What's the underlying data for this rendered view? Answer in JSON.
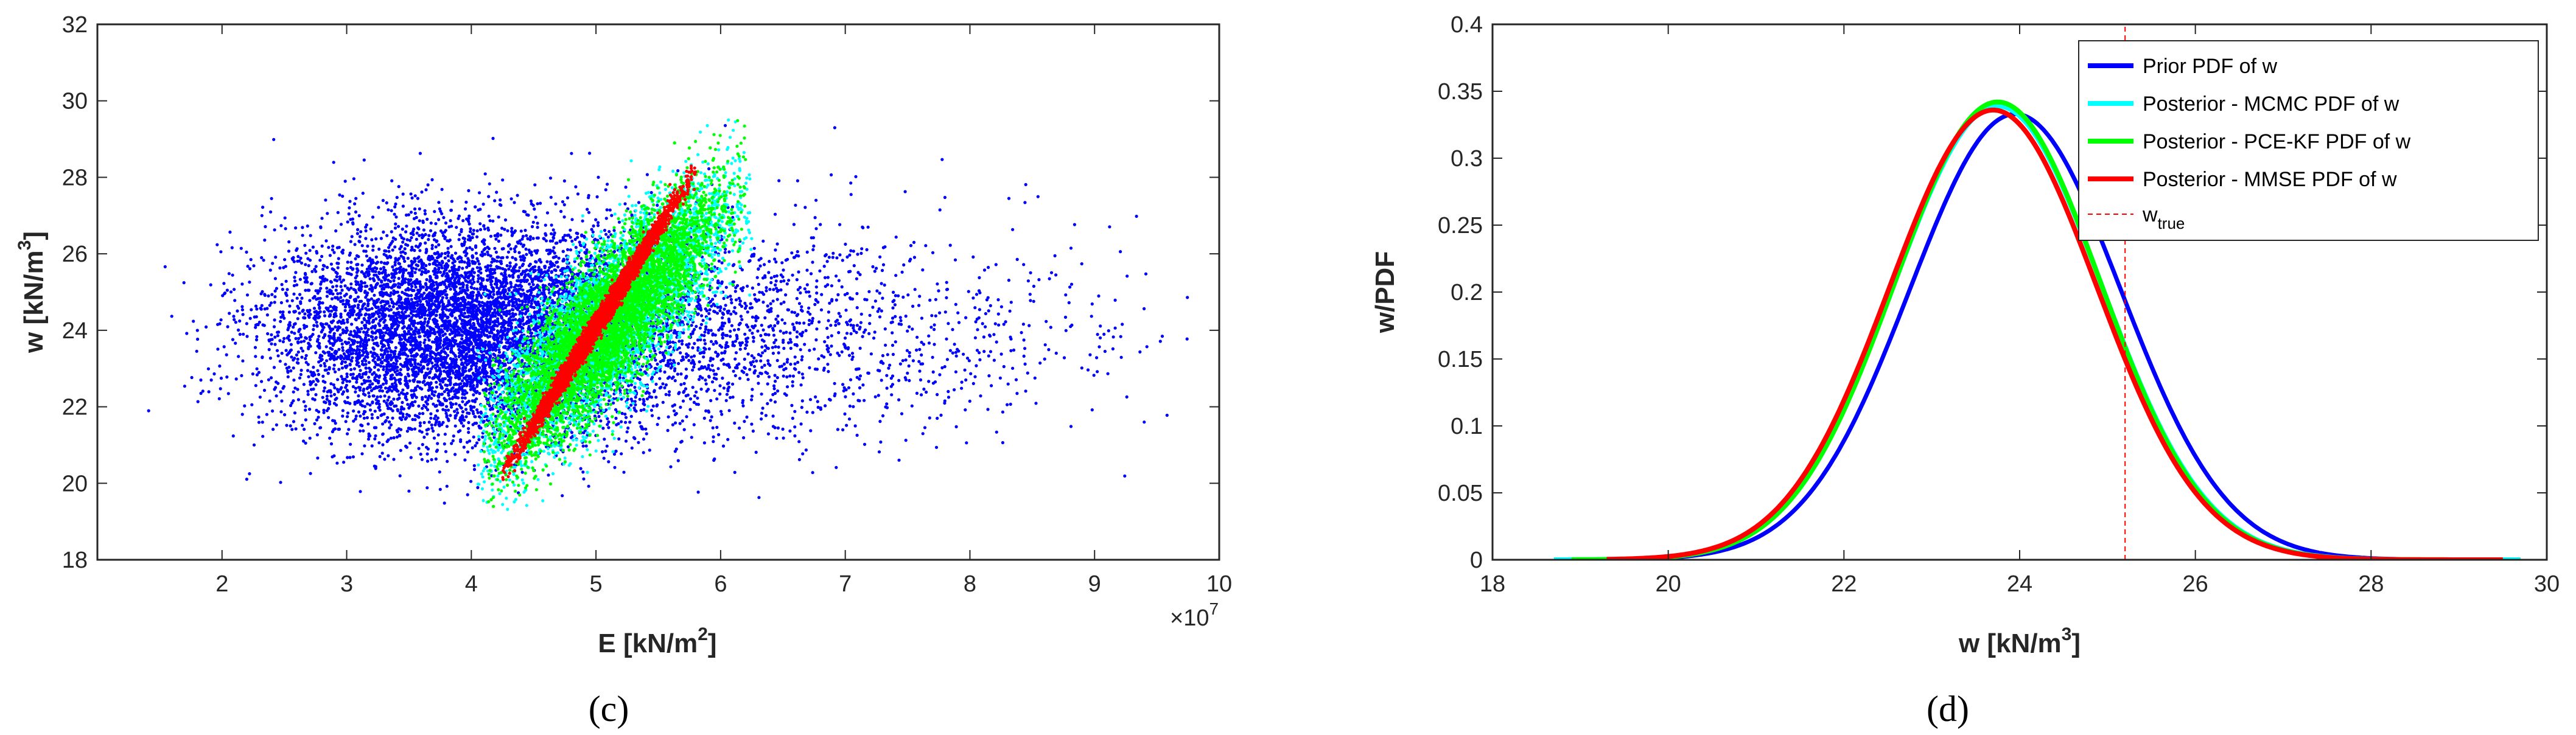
{
  "chart_data": [
    {
      "type": "scatter",
      "panel_label": "(c)",
      "xlabel": "E [kN/m",
      "xlabel_sup": "2",
      "xlabel_end": "]",
      "ylabel": "w [kN/m",
      "ylabel_sup": "3",
      "ylabel_end": "]",
      "x_multiplier": "×10",
      "x_multiplier_exp": "7",
      "xlim": [
        1,
        10
      ],
      "ylim": [
        18,
        32
      ],
      "xticks": [
        2,
        3,
        4,
        5,
        6,
        7,
        8,
        9,
        10
      ],
      "yticks": [
        18,
        20,
        22,
        24,
        26,
        28,
        30,
        32
      ],
      "grid": false,
      "series": [
        {
          "color": "#0000ff",
          "cloud": {
            "center": [
              3.9,
              24.0
            ],
            "spread": [
              0.75,
              1.4
            ],
            "corr": 0.0,
            "n": 9000,
            "clip_x": [
              1.4,
              9.8
            ],
            "clip_y": [
              19.4,
              29.6
            ]
          }
        },
        {
          "color": "#00ffff",
          "cloud": {
            "center": [
              5.1,
              24.2
            ],
            "spread": [
              0.5,
              1.8
            ],
            "corr": 0.82,
            "n": 4500,
            "clip_x": [
              4.05,
              6.25
            ],
            "clip_y": [
              18.9,
              30.1
            ]
          }
        },
        {
          "color": "#00ff00",
          "cloud": {
            "center": [
              5.1,
              24.2
            ],
            "spread": [
              0.44,
              1.7
            ],
            "corr": 0.85,
            "n": 6500,
            "clip_x": [
              4.1,
              6.2
            ],
            "clip_y": [
              19.2,
              29.9
            ]
          }
        },
        {
          "color": "#ff0000",
          "cloud": {
            "center": [
              5.02,
              24.2
            ],
            "spread": [
              0.3,
              1.55
            ],
            "corr": 0.995,
            "n": 4500,
            "clip_x": [
              4.25,
              5.8
            ],
            "clip_y": [
              19.7,
              28.8
            ]
          }
        }
      ]
    },
    {
      "type": "line",
      "panel_label": "(d)",
      "xlabel": "w [kN/m",
      "xlabel_sup": "3",
      "xlabel_end": "]",
      "ylabel": "w/PDF",
      "xlim": [
        18,
        30
      ],
      "ylim": [
        0,
        0.4
      ],
      "xticks": [
        18,
        20,
        22,
        24,
        26,
        28,
        30
      ],
      "yticks": [
        0,
        0.05,
        0.1,
        0.15,
        0.2,
        0.25,
        0.3,
        0.35,
        0.4
      ],
      "legend_position": "top-right",
      "grid": false,
      "series": [
        {
          "name": "Prior PDF of w",
          "color": "#0000ff",
          "mean": 23.95,
          "peak": 0.333,
          "sd": 1.2,
          "x_range": [
            20.0,
            29.7
          ]
        },
        {
          "name": "Posterior - MCMC PDF of w",
          "color": "#00ffff",
          "mean": 23.75,
          "peak": 0.339,
          "sd": 1.18,
          "x_range": [
            18.7,
            29.7
          ]
        },
        {
          "name": "Posterior - PCE-KF PDF of w",
          "color": "#00ff00",
          "mean": 23.75,
          "peak": 0.342,
          "sd": 1.17,
          "x_range": [
            18.9,
            29.5
          ]
        },
        {
          "name": "Posterior - MMSE PDF of w",
          "color": "#ff0000",
          "mean": 23.7,
          "peak": 0.336,
          "sd": 1.18,
          "x_range": [
            19.3,
            29.5
          ]
        }
      ],
      "reference_line": {
        "name": "w",
        "name_sub": "true",
        "x": 25.2,
        "color": "#ff0000",
        "style": "dashed"
      }
    }
  ]
}
